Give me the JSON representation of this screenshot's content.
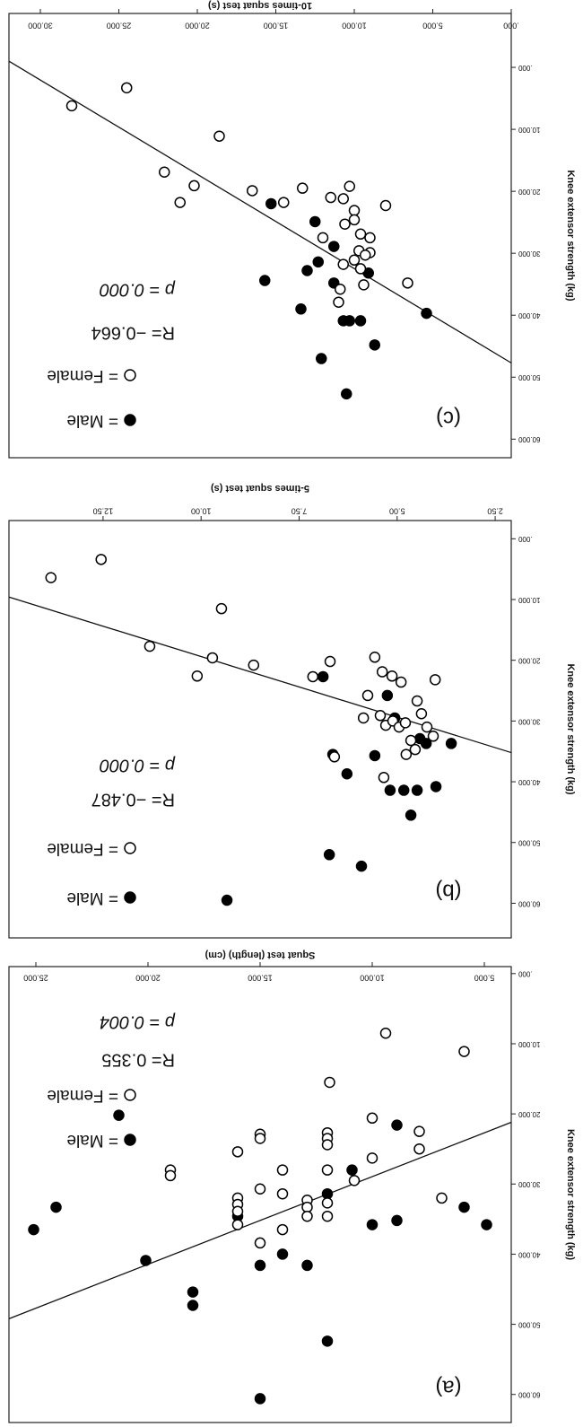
{
  "chart_data": [
    {
      "type": "scatter",
      "x_label": "Squat test (length) (cm)",
      "y_label": "Knee extensor strength (kg)",
      "xlim": [
        3.8,
        26.2
      ],
      "ylim": [
        -1,
        64
      ],
      "xticks": [
        {
          "value": 5,
          "label": "5.000"
        },
        {
          "value": 10,
          "label": "10.000"
        },
        {
          "value": 15,
          "label": "15.000"
        },
        {
          "value": 20,
          "label": "20.000"
        },
        {
          "value": 25,
          "label": "25.000"
        }
      ],
      "yticks": [
        {
          "value": 0,
          "label": ".000"
        },
        {
          "value": 10,
          "label": "10.000"
        },
        {
          "value": 20,
          "label": "20.000"
        },
        {
          "value": 30,
          "label": "30.000"
        },
        {
          "value": 40,
          "label": "40.000"
        },
        {
          "value": 50,
          "label": "50.000"
        },
        {
          "value": 60,
          "label": "60.000"
        }
      ],
      "series": [
        {
          "name": "= Male",
          "color": "#000000",
          "marker": "filled",
          "x": [
            21.3,
            8.9,
            10.9,
            12.0,
            16.0,
            10.0,
            8.9,
            5.9,
            4.9,
            24.1,
            25.1,
            20.1,
            14.0,
            12.9,
            15.0,
            18.0,
            18.0,
            12.0,
            15.0
          ],
          "values": [
            20.2,
            21.6,
            28.0,
            31.4,
            34.6,
            35.8,
            35.2,
            33.3,
            35.8,
            33.3,
            36.5,
            40.9,
            40.0,
            41.6,
            41.6,
            45.4,
            47.3,
            52.4,
            60.6
          ]
        },
        {
          "name": "= Female",
          "color": "#000000",
          "marker": "open",
          "x": [
            9.4,
            5.9,
            11.9,
            10.0,
            7.9,
            7.9,
            15.0,
            15.0,
            12.0,
            12.0,
            12.0,
            16.0,
            19.0,
            19.0,
            14.0,
            12.0,
            10.0,
            10.8,
            16.0,
            16.0,
            16.0,
            15.0,
            14.0,
            12.9,
            12.9,
            12.9,
            12.0,
            12.0,
            16.0,
            14.0,
            6.9,
            15.0
          ],
          "values": [
            8.5,
            11.1,
            15.5,
            20.6,
            22.5,
            25.0,
            22.9,
            23.5,
            22.7,
            23.5,
            24.4,
            25.4,
            28.0,
            28.8,
            28.0,
            28.0,
            26.3,
            29.5,
            32.0,
            32.9,
            33.9,
            30.7,
            31.4,
            32.3,
            33.3,
            34.6,
            32.7,
            34.6,
            35.8,
            36.5,
            32.0,
            38.4
          ]
        }
      ],
      "fit_line": {
        "x": [
          3.8,
          26.2
        ],
        "y": [
          21.2,
          49.2
        ]
      },
      "panel_label": "(a)",
      "r_text": "R= 0.355",
      "p_text": "p = 0.004"
    },
    {
      "type": "scatter",
      "x_label": "5-times squat test (s)",
      "y_label": "Knee extensor strength (kg)",
      "xlim": [
        2.09,
        14.9
      ],
      "ylim": [
        -3,
        65.7
      ],
      "xticks": [
        {
          "value": 2.5,
          "label": "2.50"
        },
        {
          "value": 5,
          "label": "5.00"
        },
        {
          "value": 7.5,
          "label": "7.50"
        },
        {
          "value": 10,
          "label": "10.00"
        },
        {
          "value": 12.5,
          "label": "12.50"
        }
      ],
      "yticks": [
        {
          "value": 0,
          "label": ".000"
        },
        {
          "value": 10,
          "label": "10.000"
        },
        {
          "value": 20,
          "label": "20.000"
        },
        {
          "value": 30,
          "label": "30.000"
        },
        {
          "value": 40,
          "label": "40.000"
        },
        {
          "value": 50,
          "label": "50.000"
        },
        {
          "value": 60,
          "label": "60.000"
        }
      ],
      "series": [
        {
          "name": "= Male",
          "color": "#000000",
          "marker": "filled",
          "x": [
            6.89,
            5.25,
            5.06,
            4.42,
            4.26,
            3.62,
            6.64,
            6.28,
            5.57,
            5.18,
            4.83,
            4.49,
            4.01,
            4.65,
            6.73,
            5.91,
            9.34
          ],
          "values": [
            22.7,
            25.8,
            29.5,
            32.9,
            33.7,
            33.7,
            35.5,
            38.7,
            35.7,
            41.4,
            41.4,
            41.4,
            40.8,
            45.5,
            52.0,
            53.9,
            59.5
          ]
        },
        {
          "name": "= Female",
          "color": "#000000",
          "marker": "open",
          "x": [
            13.83,
            12.55,
            9.48,
            11.31,
            9.71,
            10.1,
            8.66,
            7.15,
            6.71,
            5.57,
            5.38,
            5.13,
            4.9,
            4.03,
            5.75,
            5.86,
            5.43,
            5.29,
            5.11,
            4.95,
            4.79,
            4.65,
            4.54,
            4.77,
            4.24,
            4.08,
            4.38,
            4.49,
            6.6,
            5.34
          ],
          "values": [
            6.4,
            3.4,
            11.5,
            17.7,
            19.6,
            22.6,
            20.8,
            22.7,
            20.2,
            19.5,
            21.9,
            22.6,
            23.6,
            23.2,
            25.8,
            29.5,
            29.1,
            30.7,
            30.0,
            31.0,
            30.3,
            33.2,
            34.7,
            35.5,
            31.0,
            32.5,
            28.8,
            26.7,
            35.9,
            39.3
          ]
        }
      ],
      "fit_line": {
        "x": [
          2.09,
          14.9
        ],
        "y": [
          35.2,
          9.6
        ]
      },
      "panel_label": "(b)",
      "r_text": "R= −0.487",
      "p_text": "p = 0.000"
    },
    {
      "type": "scatter",
      "x_label": "10-times squat test (s)",
      "y_label": "Knee extensor strength (kg)",
      "xlim": [
        0,
        32
      ],
      "ylim": [
        -8.7,
        63
      ],
      "xticks": [
        {
          "value": 0,
          "label": ".000"
        },
        {
          "value": 5,
          "label": "5.000"
        },
        {
          "value": 10,
          "label": "10.000"
        },
        {
          "value": 15,
          "label": "15.000"
        },
        {
          "value": 20,
          "label": "20.000"
        },
        {
          "value": 25,
          "label": "25.000"
        },
        {
          "value": 30,
          "label": "30.000"
        }
      ],
      "yticks": [
        {
          "value": 0,
          "label": ".000"
        },
        {
          "value": 10,
          "label": "10.000"
        },
        {
          "value": 20,
          "label": "20.000"
        },
        {
          "value": 30,
          "label": "30.000"
        },
        {
          "value": 40,
          "label": "40.000"
        },
        {
          "value": 50,
          "label": "50.000"
        },
        {
          "value": 60,
          "label": "60.000"
        }
      ],
      "series": [
        {
          "name": "= Male",
          "color": "#000000",
          "marker": "filled",
          "x": [
            15.3,
            12.5,
            11.3,
            12.3,
            13.0,
            15.7,
            11.3,
            13.4,
            10.7,
            10.3,
            9.6,
            9.1,
            5.4,
            8.7,
            12.1,
            10.5
          ],
          "values": [
            22.0,
            24.9,
            28.9,
            31.4,
            32.8,
            34.4,
            34.8,
            39.0,
            40.9,
            40.9,
            40.9,
            33.2,
            39.7,
            44.8,
            47.0,
            52.7
          ]
        },
        {
          "name": "= Female",
          "color": "#000000",
          "marker": "open",
          "x": [
            28.0,
            24.5,
            18.6,
            22.1,
            20.2,
            21.1,
            16.5,
            14.5,
            13.3,
            11.5,
            10.7,
            10.3,
            10.0,
            8.0,
            12.0,
            10.6,
            10.0,
            9.6,
            9.7,
            9.0,
            9.0,
            10.7,
            10.0,
            9.6,
            9.3,
            9.4,
            10.9,
            6.6,
            11.0
          ],
          "values": [
            6.2,
            3.3,
            11.1,
            16.9,
            19.1,
            21.8,
            19.9,
            21.8,
            19.5,
            21.0,
            21.2,
            19.2,
            23.1,
            22.3,
            27.5,
            25.3,
            24.6,
            26.9,
            29.6,
            27.5,
            29.9,
            31.8,
            31.1,
            32.5,
            30.3,
            35.1,
            35.8,
            34.8,
            37.9
          ]
        }
      ],
      "fit_line": {
        "x": [
          0,
          32
        ],
        "y": [
          47.7,
          -1.0
        ]
      },
      "panel_label": "(c)",
      "r_text": "R= −0.664",
      "p_text": "p = 0.000"
    }
  ]
}
